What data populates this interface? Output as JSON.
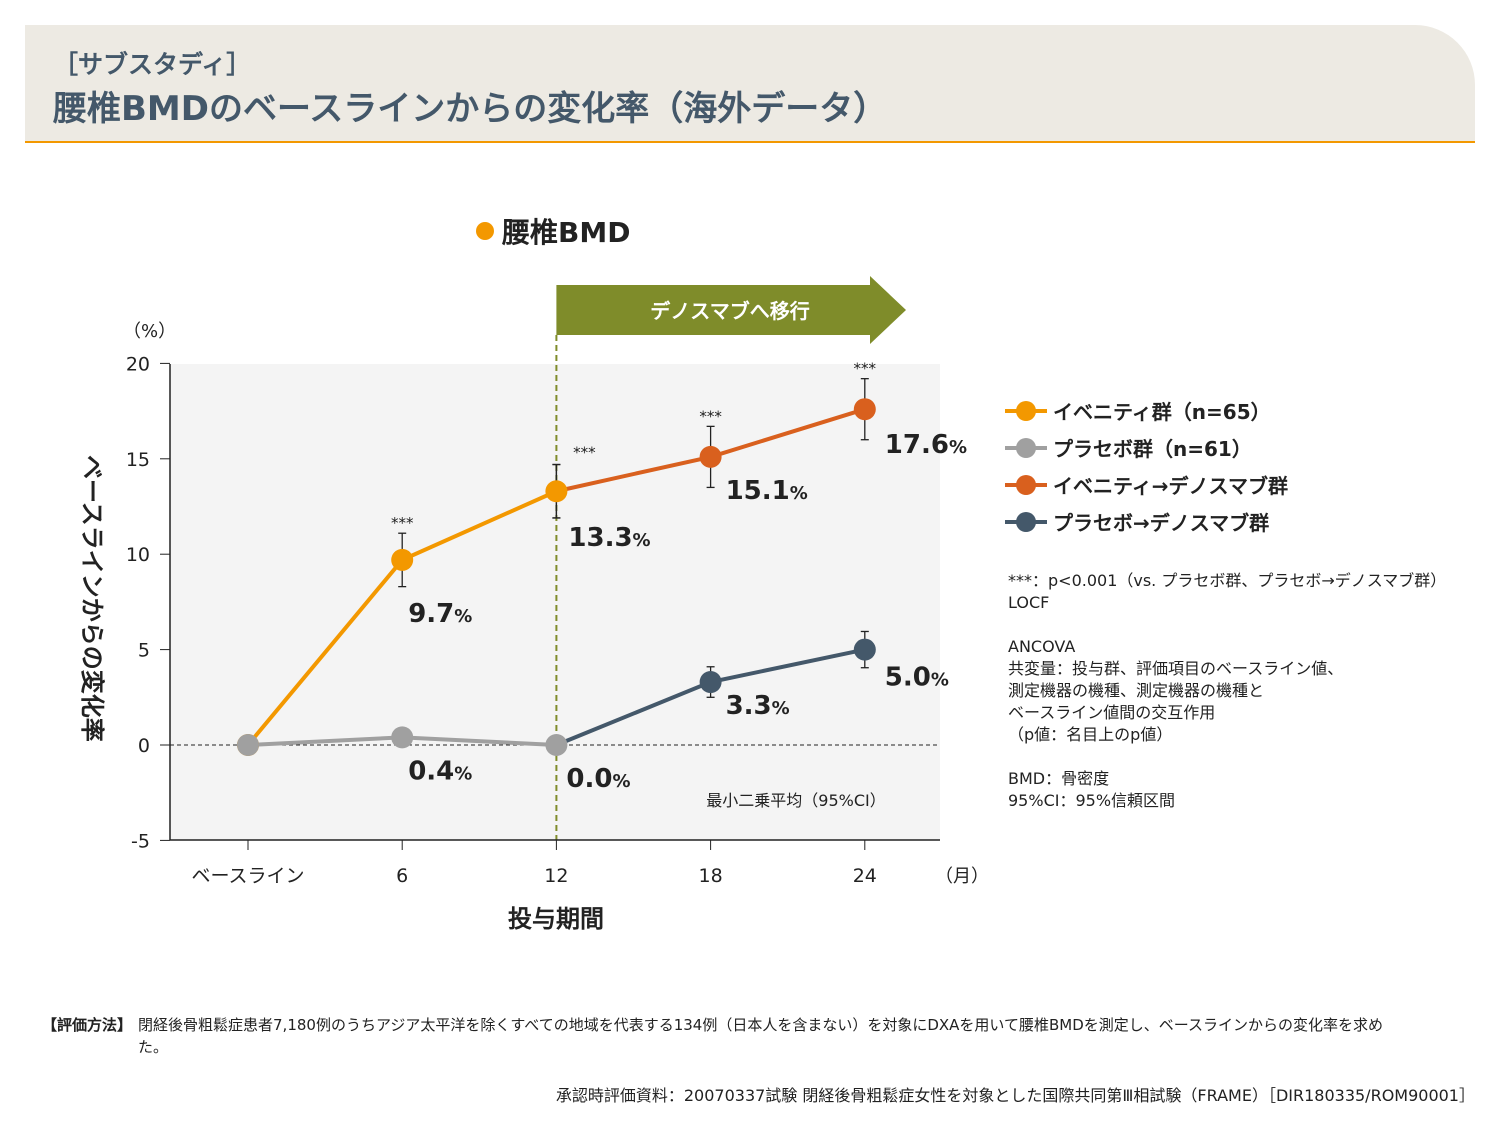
{
  "header": {
    "subtitle": "［サブスタディ］",
    "title": "腰椎BMDのベースラインからの変化率（海外データ）"
  },
  "chart_data": {
    "type": "line",
    "title": "腰椎BMD",
    "xlabel": "投与期間",
    "x_unit": "（月）",
    "ylabel": "ベースラインからの変化率",
    "y_unit": "（%）",
    "ylim": [
      -5,
      20
    ],
    "yticks": [
      "20",
      "15",
      "10",
      "5",
      "0",
      "-5"
    ],
    "x": [
      0,
      6,
      12,
      18,
      24
    ],
    "xtick_labels": [
      "ベースライン",
      "6",
      "12",
      "18",
      "24"
    ],
    "transition_label": "デノスマブへ移行",
    "transition_x": 12,
    "annotation": "最小二乗平均（95%CI）",
    "colors": {
      "evenity": "#f39800",
      "placebo": "#a0a0a0",
      "evenity_deno": "#d9601e",
      "placebo_deno": "#44586a",
      "arrow": "#7f8c2a"
    },
    "series": [
      {
        "name": "イベニティ群（n=65）",
        "x": [
          0,
          6,
          12
        ],
        "values": [
          0,
          9.7,
          13.3
        ],
        "err": [
          0,
          1.4,
          1.4
        ],
        "labels": [
          "",
          "9.7",
          "13.3"
        ],
        "sig": [
          "",
          "***",
          "***"
        ]
      },
      {
        "name": "プラセボ群（n=61）",
        "x": [
          0,
          6,
          12
        ],
        "values": [
          0,
          0.4,
          0.0
        ],
        "err": [
          0,
          0.35,
          0.35
        ],
        "labels": [
          "",
          "0.4",
          "0.0"
        ],
        "sig": [
          "",
          "",
          ""
        ]
      },
      {
        "name": "イベニティ→デノスマブ群",
        "x": [
          12,
          18,
          24
        ],
        "values": [
          13.3,
          15.1,
          17.6
        ],
        "err": [
          1.4,
          1.6,
          1.6
        ],
        "labels": [
          "",
          "15.1",
          "17.6"
        ],
        "sig": [
          "",
          "***",
          "***"
        ]
      },
      {
        "name": "プラセボ→デノスマブ群",
        "x": [
          12,
          18,
          24
        ],
        "values": [
          0.0,
          3.3,
          5.0
        ],
        "err": [
          0.35,
          0.8,
          0.95
        ],
        "labels": [
          "",
          "3.3",
          "5.0"
        ],
        "sig": [
          "",
          "",
          ""
        ]
      }
    ],
    "pct": "%"
  },
  "notes": "***：p<0.001（vs. プラセボ群、プラセボ→デノスマブ群）\nLOCF\n\nANCOVA\n共変量：投与群、評価項目のベースライン値、\n測定機器の機種、測定機器の機種と\nベースライン値間の交互作用\n（p値：名目上のp値）\n\nBMD：骨密度\n95%CI：95%信頼区間",
  "method": {
    "label": "【評価方法】",
    "text": "閉経後骨粗鬆症患者7,180例のうちアジア太平洋を除くすべての地域を代表する134例（日本人を含まない）を対象にDXAを用いて腰椎BMDを測定し、ベースラインからの変化率を求めた。"
  },
  "source": "承認時評価資料：20070337試験 閉経後骨粗鬆症女性を対象とした国際共同第Ⅲ相試験（FRAME）［DIR180335/ROM90001］"
}
